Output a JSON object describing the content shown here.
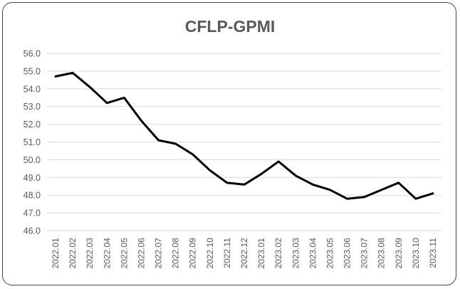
{
  "chart_data": {
    "type": "line",
    "title": "CFLP-GPMI",
    "xlabel": "",
    "ylabel": "",
    "ylim": [
      46.0,
      56.0
    ],
    "yticks": [
      "46.0",
      "47.0",
      "48.0",
      "49.0",
      "50.0",
      "51.0",
      "52.0",
      "53.0",
      "54.0",
      "55.0",
      "56.0"
    ],
    "grid": true,
    "legend": "none",
    "categories": [
      "2022.01",
      "2022.02",
      "2022.03",
      "2022.04",
      "2022.05",
      "2022.06",
      "2022.07",
      "2022.08",
      "2022.09",
      "2022.10",
      "2022.11",
      "2022.12",
      "2023.01",
      "2023.02",
      "2023.03",
      "2023.04",
      "2023.05",
      "2023.06",
      "2023.07",
      "2023.08",
      "2023.09",
      "2023.10",
      "2023.11"
    ],
    "series": [
      {
        "values": [
          54.7,
          54.9,
          54.1,
          53.2,
          53.5,
          52.2,
          51.1,
          50.9,
          50.3,
          49.4,
          48.7,
          48.6,
          49.2,
          49.9,
          49.1,
          48.6,
          48.3,
          47.8,
          47.9,
          48.3,
          48.7,
          47.8,
          48.1
        ],
        "color": "#000000"
      }
    ]
  }
}
